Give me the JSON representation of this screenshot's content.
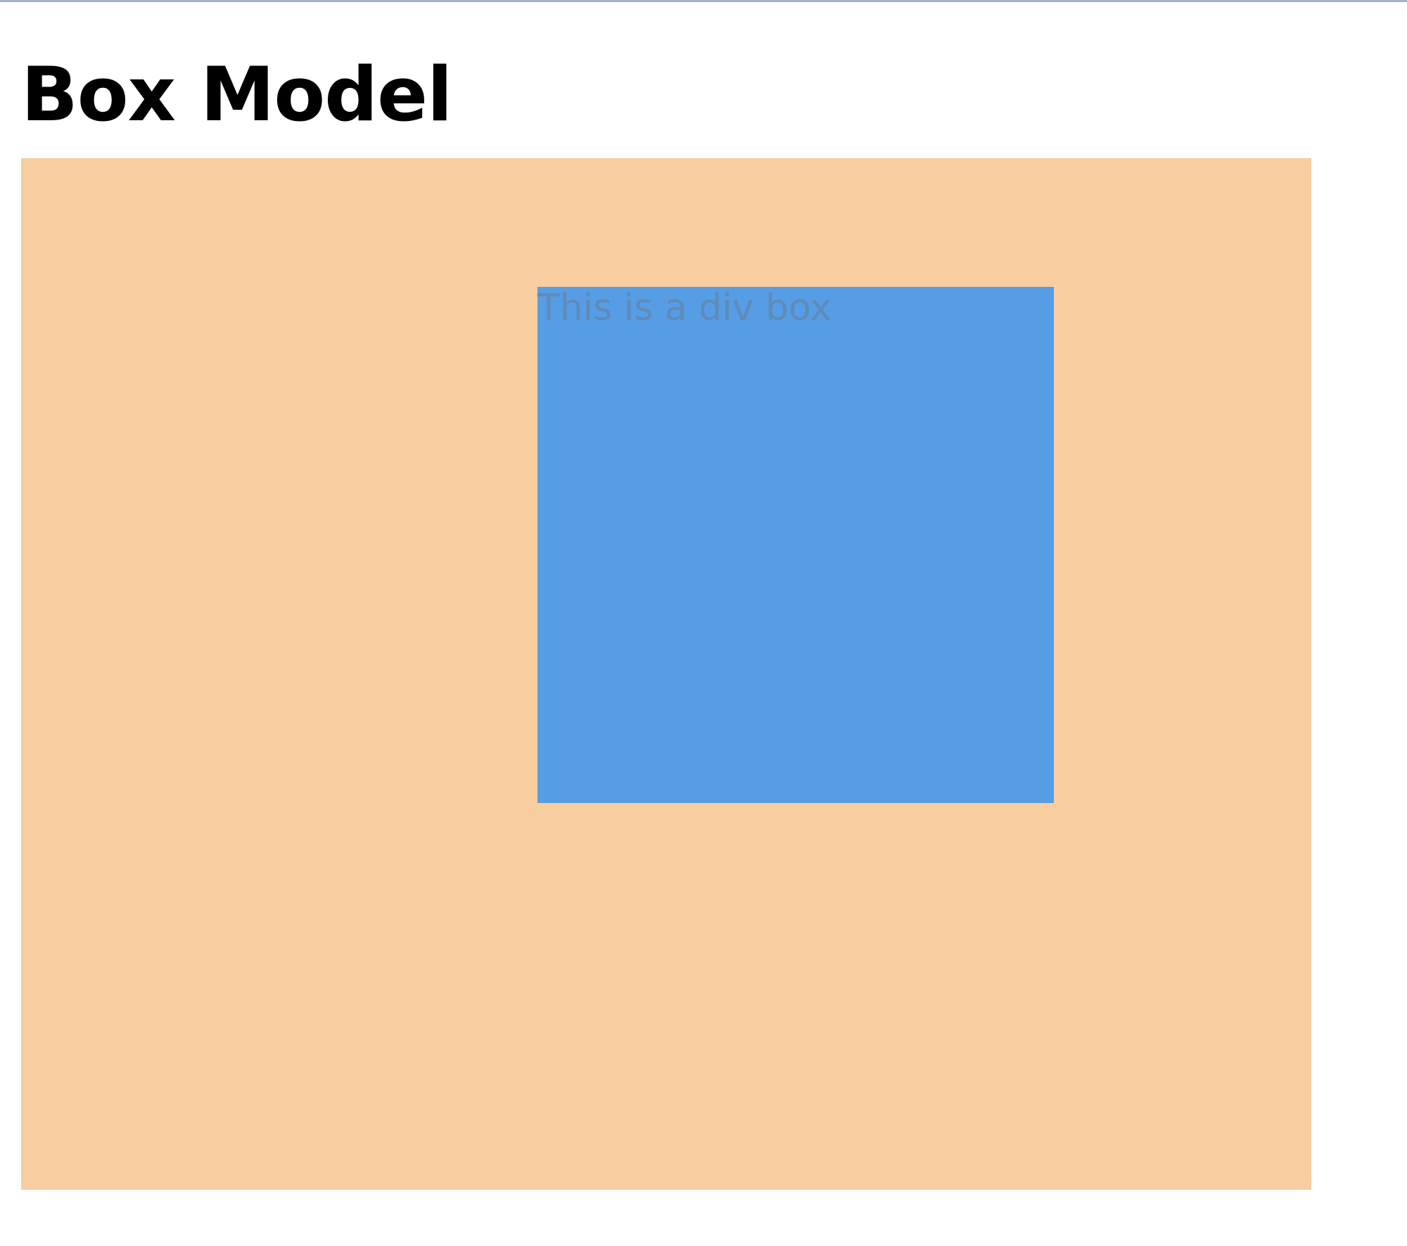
{
  "page": {
    "title": "Box Model"
  },
  "box_demo": {
    "inner_box_text": "This is a div box"
  },
  "colors": {
    "top_rule": "#a4b1c8",
    "outer_box": "#f8cda0",
    "inner_box": "#569de6",
    "inner_box_text": "#5e8bb8"
  }
}
